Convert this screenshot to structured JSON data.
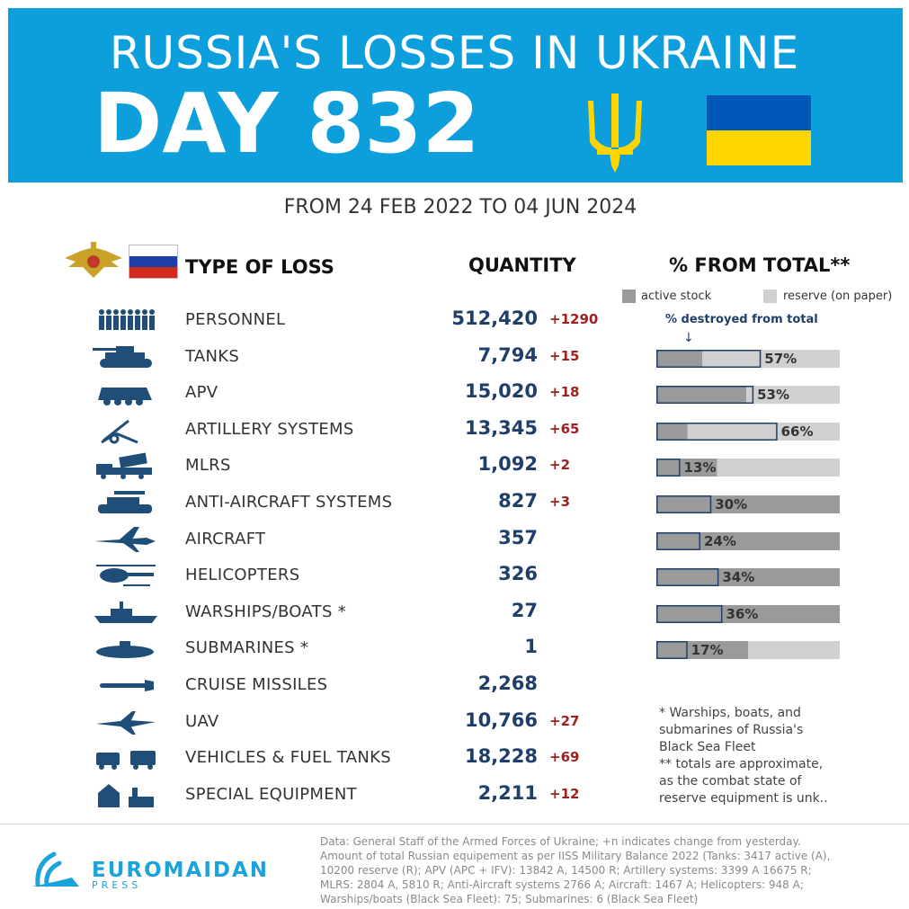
{
  "banner": {
    "title": "RUSSIA'S LOSSES IN UKRAINE",
    "day": "DAY 832",
    "subtitle": "FROM 24 FEB 2022 TO 04 JUN 2024"
  },
  "headers": {
    "type": "TYPE OF LOSS",
    "quantity": "QUANTITY",
    "percent": "% FROM TOTAL**"
  },
  "legend": {
    "active": "active stock",
    "reserve": "reserve (on paper)",
    "destroyed": "% destroyed from total",
    "arrow": "↓"
  },
  "colors": {
    "banner": "#0d9fdc",
    "qty": "#1f3f6a",
    "delta": "#a02020",
    "active": "#9a9a9a",
    "reserve": "#d0d0d0",
    "destroyed_outline": "#1f3f6a",
    "icon": "#1f4e79"
  },
  "chart_data": {
    "type": "table",
    "rows": [
      {
        "label": "PERSONNEL",
        "qty": "512,420",
        "delta": "+1290",
        "icon": "soldiers-icon"
      },
      {
        "label": "TANKS",
        "qty": "7,794",
        "delta": "+15",
        "icon": "tank-icon",
        "pct": 57,
        "pct_label": "57%",
        "active_frac": 0.25
      },
      {
        "label": "APV",
        "qty": "15,020",
        "delta": "+18",
        "icon": "apv-icon",
        "pct": 53,
        "pct_label": "53%",
        "active_frac": 0.49
      },
      {
        "label": "ARTILLERY SYSTEMS",
        "qty": "13,345",
        "delta": "+65",
        "icon": "artillery-icon",
        "pct": 66,
        "pct_label": "66%",
        "active_frac": 0.17
      },
      {
        "label": "MLRS",
        "qty": "1,092",
        "delta": "+2",
        "icon": "mlrs-icon",
        "pct": 13,
        "pct_label": "13%",
        "active_frac": 0.33
      },
      {
        "label": "ANTI-AIRCRAFT SYSTEMS",
        "qty": "827",
        "delta": "+3",
        "icon": "anti-aircraft-icon",
        "pct": 30,
        "pct_label": "30%",
        "active_frac": 1
      },
      {
        "label": "AIRCRAFT",
        "qty": "357",
        "delta": "",
        "icon": "aircraft-icon",
        "pct": 24,
        "pct_label": "24%",
        "active_frac": 1
      },
      {
        "label": "HELICOPTERS",
        "qty": "326",
        "delta": "",
        "icon": "helicopter-icon",
        "pct": 34,
        "pct_label": "34%",
        "active_frac": 1
      },
      {
        "label": "WARSHIPS/BOATS *",
        "qty": "27",
        "delta": "",
        "icon": "warship-icon",
        "pct": 36,
        "pct_label": "36%",
        "active_frac": 1
      },
      {
        "label": "SUBMARINES *",
        "qty": "1",
        "delta": "",
        "icon": "submarine-icon",
        "pct": 17,
        "pct_label": "17%",
        "active_frac": 0.5
      },
      {
        "label": "CRUISE MISSILES",
        "qty": "2,268",
        "delta": "",
        "icon": "cruise-missile-icon"
      },
      {
        "label": "UAV",
        "qty": "10,766",
        "delta": "+27",
        "icon": "uav-icon"
      },
      {
        "label": "VEHICLES & FUEL TANKS",
        "qty": "18,228",
        "delta": "+69",
        "icon": "vehicles-icon"
      },
      {
        "label": "SPECIAL EQUIPMENT",
        "qty": "2,211",
        "delta": "+12",
        "icon": "special-equipment-icon"
      }
    ]
  },
  "footnote": "* Warships, boats, and\nsubmarines of Russia's\nBlack Sea Fleet\n** totals are approximate,\nas the combat state of\nreserve equipment is unk..",
  "brand": {
    "name": "EUROMAIDAN",
    "sub": "PRESS"
  },
  "source": "Data: General Staff of the Armed Forces of Ukraine; +n indicates change from yesterday. Amount of total Russian equipement as per IISS Military Balance 2022 (Tanks: 3417 active (A), 10200 reserve (R); APV (APC + IFV): 13842 A, 14500 R; Artillery systems: 3399 A 16675 R; MLRS: 2804 A, 5810 R; Anti-Aircraft systems 2766 A; Aircraft: 1467 A; Helicopters: 948 A; Warships/boats (Black Sea Fleet): 75; Submarines: 6 (Black Sea Fleet)"
}
